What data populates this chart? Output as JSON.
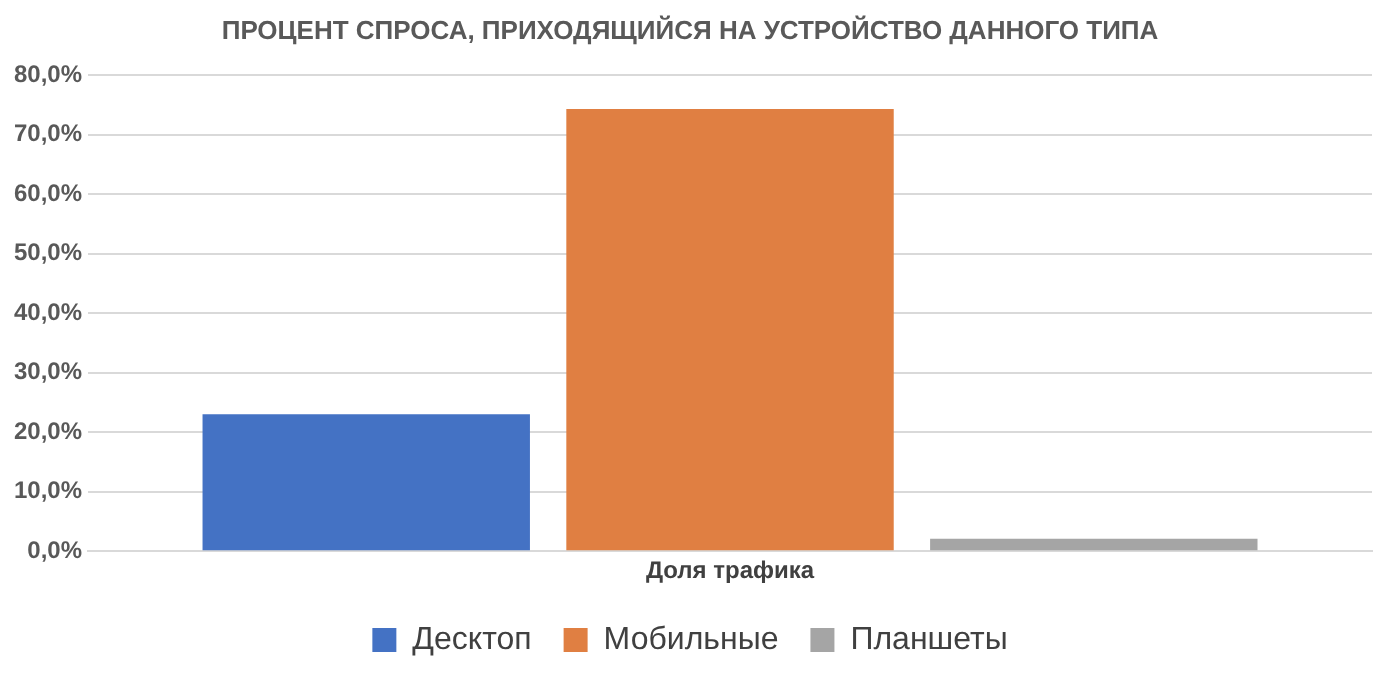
{
  "chart_data": {
    "type": "bar",
    "title": "ПРОЦЕНТ СПРОСА, ПРИХОДЯЩИЙСЯ НА УСТРОЙСТВО ДАННОГО ТИПА",
    "categories": [
      "Доля трафика"
    ],
    "series": [
      {
        "name": "Десктоп",
        "color": "#4472c4",
        "values": [
          23.0
        ]
      },
      {
        "name": "Мобильные",
        "color": "#e07f42",
        "values": [
          74.3
        ]
      },
      {
        "name": "Планшеты",
        "color": "#a5a5a5",
        "values": [
          2.1
        ]
      }
    ],
    "ylim": [
      0,
      80
    ],
    "yticks": [
      {
        "value": 0,
        "label": "0,0%"
      },
      {
        "value": 10,
        "label": "10,0%"
      },
      {
        "value": 20,
        "label": "20,0%"
      },
      {
        "value": 30,
        "label": "30,0%"
      },
      {
        "value": 40,
        "label": "40,0%"
      },
      {
        "value": 50,
        "label": "50,0%"
      },
      {
        "value": 60,
        "label": "60,0%"
      },
      {
        "value": 70,
        "label": "70,0%"
      },
      {
        "value": 80,
        "label": "80,0%"
      }
    ],
    "grid": "y",
    "legend": "bottom"
  }
}
